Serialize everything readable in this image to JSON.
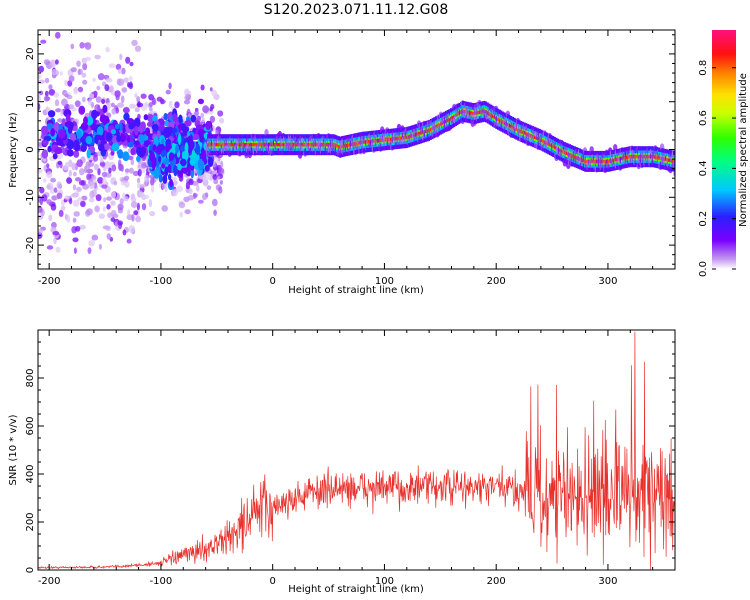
{
  "title": "S120.2023.071.11.12.G08",
  "chart_data": [
    {
      "type": "heatmap",
      "xlabel": "Height of straight line (km)",
      "ylabel": "Frequency (Hz)",
      "xlim": [
        -210,
        360
      ],
      "ylim": [
        -25,
        25
      ],
      "x_ticks": [
        -200,
        -100,
        0,
        100,
        200,
        300
      ],
      "y_ticks": [
        -20,
        -10,
        0,
        10,
        20
      ],
      "colorbar": {
        "label": "Normalized spectral amplitude",
        "ticks": [
          "0.0",
          "0.2",
          "0.4",
          "0.6",
          "0.8"
        ],
        "range": [
          0,
          0.95
        ],
        "colormap": "rainbow (purple-blue-cyan-green-yellow-red-pink)"
      },
      "ridge": {
        "x": [
          -55,
          -40,
          -20,
          0,
          20,
          40,
          55,
          60,
          80,
          100,
          120,
          140,
          160,
          170,
          180,
          190,
          200,
          220,
          240,
          260,
          280,
          300,
          320,
          340,
          360
        ],
        "y": [
          1,
          1,
          1,
          1,
          1,
          1,
          1,
          0.5,
          1.5,
          2,
          2.5,
          4,
          6.5,
          8,
          7.5,
          8,
          6.5,
          4,
          2,
          -0.5,
          -2.5,
          -2.5,
          -1.5,
          -1.5,
          -2.5
        ]
      },
      "noise_region": {
        "x": [
          -210,
          -60
        ],
        "y": [
          -25,
          25
        ]
      }
    },
    {
      "type": "line",
      "xlabel": "Height of straight line (km)",
      "ylabel": "SNR (10 * v/v)",
      "xlim": [
        -210,
        360
      ],
      "ylim": [
        0,
        1000
      ],
      "x_ticks": [
        -200,
        -100,
        0,
        100,
        200,
        300
      ],
      "y_ticks": [
        0,
        200,
        400,
        600,
        800
      ],
      "series": [
        {
          "color": "#e8312c",
          "envelope_x": [
            -210,
            -150,
            -120,
            -100,
            -80,
            -60,
            -40,
            -25,
            -15,
            0,
            20,
            40,
            60,
            100,
            150,
            200,
            230,
            250,
            280,
            300,
            330,
            350,
            360
          ],
          "envelope_y": [
            10,
            12,
            20,
            30,
            60,
            90,
            130,
            200,
            240,
            260,
            300,
            330,
            340,
            340,
            345,
            340,
            330,
            300,
            300,
            320,
            320,
            280,
            280
          ]
        }
      ]
    }
  ]
}
